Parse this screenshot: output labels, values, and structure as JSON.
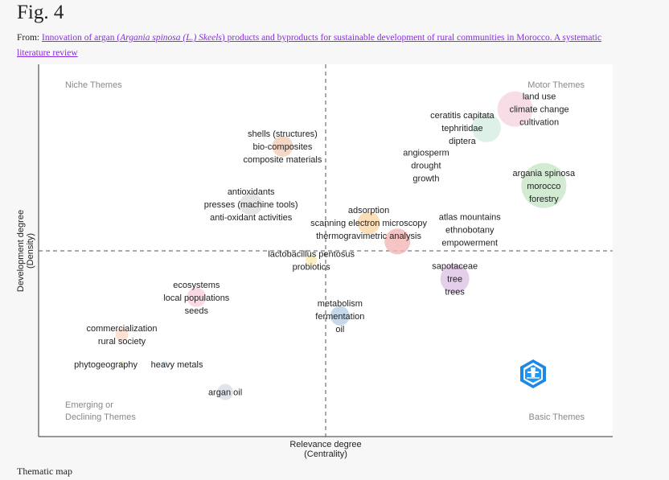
{
  "figure": {
    "title": "Fig. 4",
    "from_label": "From:",
    "link_part1": "Innovation of argan (",
    "link_italic": "Argania spinosa (L.) Skeels",
    "link_part2": ") products and byproducts for sustainable development of rural communities in Morocco. A systematic literature review",
    "caption": "Thematic map"
  },
  "chart_data": {
    "type": "scatter",
    "subtype": "bubble thematic map",
    "xlabel": "Relevance degree",
    "xlabel_sub": "(Centrality)",
    "ylabel": "Development degree",
    "ylabel_sub": "(Density)",
    "xlim": [
      -1,
      1
    ],
    "ylim": [
      -1,
      1
    ],
    "quadrants": {
      "top_left": "Niche Themes",
      "top_right": "Motor Themes",
      "bottom_left_1": "Emerging or",
      "bottom_left_2": "Declining Themes",
      "bottom_right": "Basic Themes"
    },
    "clusters": [
      {
        "centrality": -0.15,
        "density": 0.56,
        "size": 42,
        "color": "#f2cdb8",
        "labels": [
          "shells (structures)",
          "bio-composites",
          "composite materials"
        ]
      },
      {
        "centrality": -0.26,
        "density": 0.25,
        "size": 49,
        "color": "#dedede",
        "labels": [
          "antioxidants",
          "presses (machine tools)",
          "anti-oxidant activities"
        ]
      },
      {
        "centrality": 0.15,
        "density": 0.15,
        "size": 49,
        "color": "#fbd7a8",
        "labels": [
          "adsorption",
          "scanning electron microscopy",
          "thermogravimetric analysis"
        ]
      },
      {
        "centrality": 0.25,
        "density": 0.05,
        "size": 64,
        "color": "#f3b5b5",
        "labels": [
          "atlas mountains",
          "ethnobotany",
          "empowerment"
        ]
      },
      {
        "centrality": -0.05,
        "density": -0.05,
        "size": 12,
        "color": "#fbeab0",
        "labels": [
          "lactobacillus pentosus",
          "probiotics"
        ]
      },
      {
        "centrality": 0.35,
        "density": 0.46,
        "size": 0,
        "color": "#ffffff",
        "labels": [
          "angiosperm",
          "drought",
          "growth"
        ]
      },
      {
        "centrality": 0.66,
        "density": 0.76,
        "size": 121,
        "color": "#f6d4e0",
        "labels": [
          "land use",
          "climate change",
          "cultivation"
        ]
      },
      {
        "centrality": 0.56,
        "density": 0.66,
        "size": 81,
        "color": "#d4ede2",
        "labels": [
          "ceratitis capitata",
          "tephritidae",
          "diptera"
        ]
      },
      {
        "centrality": 0.76,
        "density": 0.35,
        "size": 196,
        "color": "#c8e6c8",
        "labels": [
          "argania spinosa",
          "morocco",
          "forestry"
        ]
      },
      {
        "centrality": 0.45,
        "density": -0.15,
        "size": 81,
        "color": "#dcc3e3",
        "labels": [
          "sapotaceae",
          "tree",
          "trees"
        ]
      },
      {
        "centrality": 0.05,
        "density": -0.35,
        "size": 36,
        "color": "#b8cfe6",
        "labels": [
          "metabolism",
          "fermentation",
          "oil"
        ]
      },
      {
        "centrality": -0.45,
        "density": -0.25,
        "size": 36,
        "color": "#f9d0e0",
        "labels": [
          "ecosystems",
          "local populations",
          "seeds"
        ]
      },
      {
        "centrality": -0.71,
        "density": -0.45,
        "size": 16,
        "color": "#fcd9c8",
        "labels": [
          "commercialization",
          "rural society"
        ]
      },
      {
        "centrality": -0.71,
        "density": -0.61,
        "size": 4,
        "color": "#e2f0d0",
        "labels": [
          "phytogeography"
        ]
      },
      {
        "centrality": -0.56,
        "density": -0.61,
        "size": 4,
        "color": "#d6e8f4",
        "labels": [
          "heavy metals"
        ]
      },
      {
        "centrality": -0.35,
        "density": -0.76,
        "size": 25,
        "color": "#d8dde8",
        "labels": [
          "argan oil"
        ]
      }
    ]
  },
  "colors": {
    "link": "#8a2be2",
    "logo": "#1e88e5"
  }
}
